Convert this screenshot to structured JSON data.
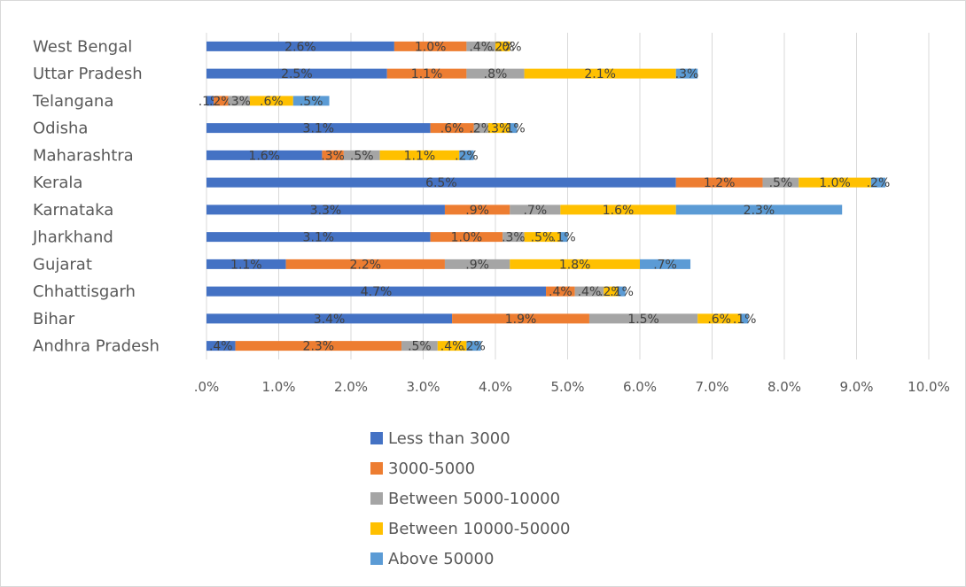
{
  "chart_data": {
    "type": "bar",
    "orientation": "horizontal",
    "stacked": true,
    "categories": [
      "Andhra Pradesh",
      "Bihar",
      "Chhattisgarh",
      "Gujarat",
      "Jharkhand",
      "Karnataka",
      "Kerala",
      "Maharashtra",
      "Odisha",
      "Telangana",
      "Uttar Pradesh",
      "West Bengal"
    ],
    "series": [
      {
        "name": "Less than 3000",
        "color": "#4472C4",
        "values": [
          0.4,
          3.4,
          4.7,
          1.1,
          3.1,
          3.3,
          6.5,
          1.6,
          3.1,
          0.1,
          2.5,
          2.6
        ],
        "labels": [
          ".4%",
          "3.4%",
          "4.7%",
          "1.1%",
          "3.1%",
          "3.3%",
          "6.5%",
          "1.6%",
          "3.1%",
          ".1%",
          "2.5%",
          "2.6%"
        ]
      },
      {
        "name": "3000-5000",
        "color": "#ED7D31",
        "values": [
          2.3,
          1.9,
          0.4,
          2.2,
          1.0,
          0.9,
          1.2,
          0.3,
          0.6,
          0.2,
          1.1,
          1.0
        ],
        "labels": [
          "2.3%",
          "1.9%",
          ".4%",
          "2.2%",
          "1.0%",
          ".9%",
          "1.2%",
          ".3%",
          ".6%",
          ".2%",
          "1.1%",
          "1.0%"
        ]
      },
      {
        "name": "Between 5000-10000",
        "color": "#A5A5A5",
        "values": [
          0.5,
          1.5,
          0.4,
          0.9,
          0.3,
          0.7,
          0.5,
          0.5,
          0.2,
          0.3,
          0.8,
          0.4
        ],
        "labels": [
          ".5%",
          "1.5%",
          ".4%",
          ".9%",
          ".3%",
          ".7%",
          ".5%",
          ".5%",
          ".2%",
          ".3%",
          ".8%",
          ".4%"
        ]
      },
      {
        "name": "Between 10000-50000",
        "color": "#FFC000",
        "values": [
          0.4,
          0.6,
          0.2,
          1.8,
          0.5,
          1.6,
          1.0,
          1.1,
          0.3,
          0.6,
          2.1,
          0.2
        ],
        "labels": [
          ".4%",
          ".6%",
          ".2%",
          "1.8%",
          ".5%",
          "1.6%",
          "1.0%",
          "1.1%",
          ".3%",
          ".6%",
          "2.1%",
          ".2%"
        ]
      },
      {
        "name": "Above 50000",
        "color": "#5B9BD5",
        "values": [
          0.2,
          0.1,
          0.1,
          0.7,
          0.1,
          2.3,
          0.2,
          0.2,
          0.1,
          0.5,
          0.3,
          0.0
        ],
        "labels": [
          ".2%",
          ".1%",
          ".1%",
          ".7%",
          ".1%",
          "2.3%",
          ".2%",
          ".2%",
          ".1%",
          ".5%",
          ".3%",
          ".0%"
        ]
      }
    ],
    "xlim": [
      0,
      10
    ],
    "x_ticks": [
      ".0%",
      "1.0%",
      "2.0%",
      "3.0%",
      "4.0%",
      "5.0%",
      "6.0%",
      "7.0%",
      "8.0%",
      "9.0%",
      "10.0%"
    ],
    "grid": true,
    "legend_position": "bottom"
  }
}
